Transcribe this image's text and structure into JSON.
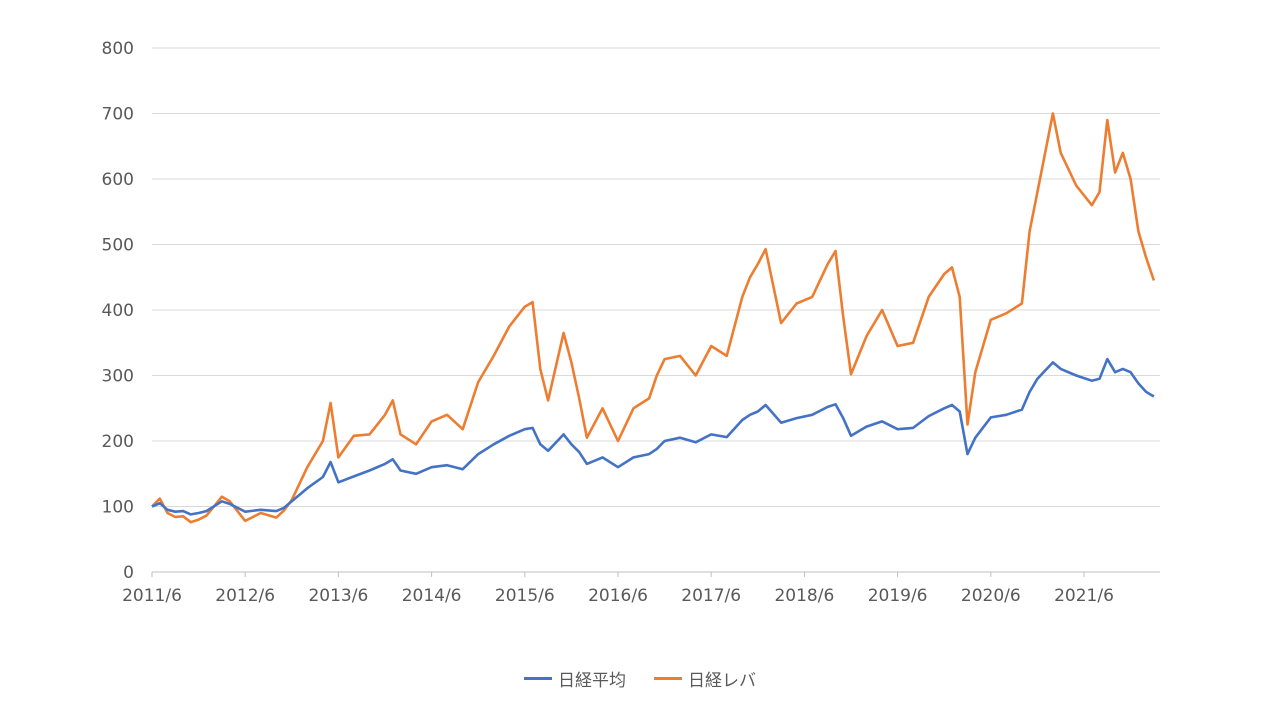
{
  "chart_data": {
    "type": "line",
    "title": "",
    "xlabel": "",
    "ylabel": "",
    "ylim": [
      0,
      800
    ],
    "yticks": [
      0,
      100,
      200,
      300,
      400,
      500,
      600,
      700,
      800
    ],
    "x_tick_labels": [
      "2011/6",
      "2012/6",
      "2013/6",
      "2014/6",
      "2015/6",
      "2016/6",
      "2017/6",
      "2018/6",
      "2019/6",
      "2020/6",
      "2021/6"
    ],
    "grid": true,
    "legend_position": "bottom",
    "series": [
      {
        "name": "日経平均",
        "color": "#4472C4",
        "points": [
          [
            "2011-06",
            100
          ],
          [
            "2011-07",
            105
          ],
          [
            "2011-08",
            95
          ],
          [
            "2011-09",
            92
          ],
          [
            "2011-10",
            93
          ],
          [
            "2011-11",
            88
          ],
          [
            "2011-12",
            90
          ],
          [
            "2012-01",
            93
          ],
          [
            "2012-03",
            108
          ],
          [
            "2012-04",
            104
          ],
          [
            "2012-06",
            92
          ],
          [
            "2012-08",
            95
          ],
          [
            "2012-10",
            93
          ],
          [
            "2012-11",
            98
          ],
          [
            "2012-12",
            108
          ],
          [
            "2013-02",
            128
          ],
          [
            "2013-04",
            145
          ],
          [
            "2013-05",
            168
          ],
          [
            "2013-06",
            137
          ],
          [
            "2013-08",
            146
          ],
          [
            "2013-10",
            155
          ],
          [
            "2013-12",
            165
          ],
          [
            "2014-01",
            172
          ],
          [
            "2014-02",
            155
          ],
          [
            "2014-04",
            150
          ],
          [
            "2014-06",
            160
          ],
          [
            "2014-08",
            163
          ],
          [
            "2014-10",
            157
          ],
          [
            "2014-12",
            180
          ],
          [
            "2015-02",
            195
          ],
          [
            "2015-04",
            208
          ],
          [
            "2015-06",
            218
          ],
          [
            "2015-07",
            220
          ],
          [
            "2015-08",
            195
          ],
          [
            "2015-09",
            185
          ],
          [
            "2015-11",
            210
          ],
          [
            "2015-12",
            195
          ],
          [
            "2016-01",
            183
          ],
          [
            "2016-02",
            165
          ],
          [
            "2016-04",
            175
          ],
          [
            "2016-06",
            160
          ],
          [
            "2016-08",
            175
          ],
          [
            "2016-10",
            180
          ],
          [
            "2016-11",
            188
          ],
          [
            "2016-12",
            200
          ],
          [
            "2017-02",
            205
          ],
          [
            "2017-04",
            198
          ],
          [
            "2017-06",
            210
          ],
          [
            "2017-08",
            206
          ],
          [
            "2017-10",
            232
          ],
          [
            "2017-11",
            240
          ],
          [
            "2017-12",
            245
          ],
          [
            "2018-01",
            255
          ],
          [
            "2018-03",
            228
          ],
          [
            "2018-05",
            235
          ],
          [
            "2018-07",
            240
          ],
          [
            "2018-09",
            252
          ],
          [
            "2018-10",
            256
          ],
          [
            "2018-11",
            235
          ],
          [
            "2018-12",
            208
          ],
          [
            "2019-02",
            222
          ],
          [
            "2019-04",
            230
          ],
          [
            "2019-06",
            218
          ],
          [
            "2019-08",
            220
          ],
          [
            "2019-10",
            238
          ],
          [
            "2019-12",
            250
          ],
          [
            "2020-01",
            255
          ],
          [
            "2020-02",
            245
          ],
          [
            "2020-03",
            180
          ],
          [
            "2020-04",
            205
          ],
          [
            "2020-06",
            236
          ],
          [
            "2020-08",
            240
          ],
          [
            "2020-10",
            248
          ],
          [
            "2020-11",
            275
          ],
          [
            "2020-12",
            295
          ],
          [
            "2021-02",
            320
          ],
          [
            "2021-03",
            310
          ],
          [
            "2021-05",
            300
          ],
          [
            "2021-07",
            292
          ],
          [
            "2021-08",
            295
          ],
          [
            "2021-09",
            325
          ],
          [
            "2021-10",
            305
          ],
          [
            "2021-11",
            310
          ],
          [
            "2021-12",
            305
          ],
          [
            "2022-01",
            288
          ],
          [
            "2022-02",
            275
          ],
          [
            "2022-03",
            268
          ]
        ]
      },
      {
        "name": "日経レバ",
        "color": "#ED7D31",
        "points": [
          [
            "2011-06",
            100
          ],
          [
            "2011-07",
            112
          ],
          [
            "2011-08",
            90
          ],
          [
            "2011-09",
            84
          ],
          [
            "2011-10",
            85
          ],
          [
            "2011-11",
            76
          ],
          [
            "2011-12",
            80
          ],
          [
            "2012-01",
            86
          ],
          [
            "2012-03",
            115
          ],
          [
            "2012-04",
            108
          ],
          [
            "2012-06",
            78
          ],
          [
            "2012-08",
            90
          ],
          [
            "2012-10",
            83
          ],
          [
            "2012-11",
            94
          ],
          [
            "2012-12",
            110
          ],
          [
            "2013-02",
            160
          ],
          [
            "2013-04",
            200
          ],
          [
            "2013-05",
            258
          ],
          [
            "2013-06",
            175
          ],
          [
            "2013-08",
            208
          ],
          [
            "2013-10",
            210
          ],
          [
            "2013-12",
            240
          ],
          [
            "2014-01",
            262
          ],
          [
            "2014-02",
            210
          ],
          [
            "2014-04",
            195
          ],
          [
            "2014-06",
            230
          ],
          [
            "2014-08",
            240
          ],
          [
            "2014-10",
            218
          ],
          [
            "2014-12",
            290
          ],
          [
            "2015-02",
            330
          ],
          [
            "2015-04",
            375
          ],
          [
            "2015-06",
            405
          ],
          [
            "2015-07",
            412
          ],
          [
            "2015-08",
            310
          ],
          [
            "2015-09",
            262
          ],
          [
            "2015-11",
            365
          ],
          [
            "2015-12",
            320
          ],
          [
            "2016-01",
            265
          ],
          [
            "2016-02",
            205
          ],
          [
            "2016-04",
            250
          ],
          [
            "2016-06",
            200
          ],
          [
            "2016-08",
            250
          ],
          [
            "2016-10",
            265
          ],
          [
            "2016-11",
            300
          ],
          [
            "2016-12",
            325
          ],
          [
            "2017-02",
            330
          ],
          [
            "2017-04",
            300
          ],
          [
            "2017-06",
            345
          ],
          [
            "2017-08",
            330
          ],
          [
            "2017-10",
            420
          ],
          [
            "2017-11",
            450
          ],
          [
            "2017-12",
            470
          ],
          [
            "2018-01",
            493
          ],
          [
            "2018-03",
            380
          ],
          [
            "2018-05",
            410
          ],
          [
            "2018-07",
            420
          ],
          [
            "2018-09",
            470
          ],
          [
            "2018-10",
            490
          ],
          [
            "2018-11",
            390
          ],
          [
            "2018-12",
            302
          ],
          [
            "2019-02",
            360
          ],
          [
            "2019-04",
            400
          ],
          [
            "2019-06",
            345
          ],
          [
            "2019-08",
            350
          ],
          [
            "2019-10",
            420
          ],
          [
            "2019-12",
            455
          ],
          [
            "2020-01",
            465
          ],
          [
            "2020-02",
            420
          ],
          [
            "2020-03",
            225
          ],
          [
            "2020-04",
            305
          ],
          [
            "2020-06",
            385
          ],
          [
            "2020-08",
            395
          ],
          [
            "2020-10",
            410
          ],
          [
            "2020-11",
            520
          ],
          [
            "2020-12",
            580
          ],
          [
            "2021-02",
            700
          ],
          [
            "2021-03",
            640
          ],
          [
            "2021-05",
            590
          ],
          [
            "2021-07",
            560
          ],
          [
            "2021-08",
            580
          ],
          [
            "2021-09",
            690
          ],
          [
            "2021-10",
            610
          ],
          [
            "2021-11",
            640
          ],
          [
            "2021-12",
            600
          ],
          [
            "2022-01",
            520
          ],
          [
            "2022-02",
            480
          ],
          [
            "2022-03",
            445
          ]
        ]
      }
    ]
  }
}
